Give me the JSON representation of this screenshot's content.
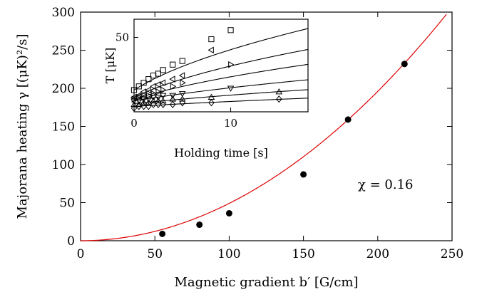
{
  "chart_data": [
    {
      "type": "scatter",
      "title": "",
      "xlabel": "Magnetic gradient b′ [G/cm]",
      "ylabel": "Majorana heating γ [(μK)²/s]",
      "xlim": [
        0,
        250
      ],
      "ylim": [
        0,
        300
      ],
      "x_ticks": [
        0,
        50,
        100,
        150,
        200,
        250
      ],
      "y_ticks": [
        0,
        50,
        100,
        150,
        200,
        250,
        300
      ],
      "grid": false,
      "points": [
        {
          "x": 55,
          "y": 9
        },
        {
          "x": 80,
          "y": 21
        },
        {
          "x": 100,
          "y": 36
        },
        {
          "x": 150,
          "y": 87
        },
        {
          "x": 180,
          "y": 159
        },
        {
          "x": 218,
          "y": 232
        }
      ],
      "fit": {
        "form": "power",
        "coef": 0.0049,
        "exponent": 2,
        "color": "#dd0000"
      },
      "marker_color": "#000000",
      "annotation": "χ = 0.16"
    },
    {
      "type": "scatter",
      "title": "",
      "xlabel": "Holding time [s]",
      "ylabel": "T [μK]",
      "xlim": [
        0,
        18
      ],
      "ylim": [
        9,
        60
      ],
      "x_ticks": [
        0,
        10
      ],
      "y_ticks": [
        50
      ],
      "grid": false,
      "series": [
        {
          "marker": "square",
          "T0": 21,
          "rate": 3.4,
          "x": [
            0,
            0.5,
            1,
            1.5,
            2,
            2.5,
            3,
            4,
            5,
            8,
            10
          ],
          "y": [
            21,
            23,
            25,
            27,
            29,
            30,
            32,
            35,
            37,
            49,
            54
          ]
        },
        {
          "marker": "triangle-left",
          "T0": 17,
          "rate": 2.6,
          "x": [
            0,
            0.5,
            1,
            1.5,
            2,
            2.5,
            3,
            4,
            5,
            8
          ],
          "y": [
            17,
            18,
            20,
            21,
            23,
            24,
            25,
            27,
            29,
            43
          ]
        },
        {
          "marker": "triangle-right",
          "T0": 16,
          "rate": 1.7,
          "x": [
            0,
            0.5,
            1,
            1.5,
            2,
            2.5,
            3,
            4,
            5,
            10
          ],
          "y": [
            16,
            17,
            17,
            18,
            19,
            20,
            21,
            23,
            25,
            35
          ]
        },
        {
          "marker": "triangle-down",
          "T0": 15,
          "rate": 0.9,
          "x": [
            0,
            0.5,
            1,
            1.5,
            2,
            2.5,
            3,
            4,
            5,
            10
          ],
          "y": [
            15,
            15,
            16,
            16,
            17,
            17,
            18,
            18,
            19,
            22
          ]
        },
        {
          "marker": "triangle-up",
          "T0": 13.5,
          "rate": 0.55,
          "x": [
            0,
            0.5,
            1,
            1.5,
            2,
            2.5,
            3,
            4,
            5,
            8,
            15
          ],
          "y": [
            13,
            13,
            14,
            14,
            15,
            15,
            15,
            16,
            16,
            17,
            20
          ]
        },
        {
          "marker": "diamond",
          "T0": 12,
          "rate": 0.3,
          "x": [
            0,
            0.5,
            1,
            1.5,
            2,
            2.5,
            3,
            4,
            5,
            8,
            15
          ],
          "y": [
            11,
            12,
            12,
            12,
            13,
            13,
            13,
            13,
            14,
            14,
            16
          ]
        }
      ]
    }
  ]
}
